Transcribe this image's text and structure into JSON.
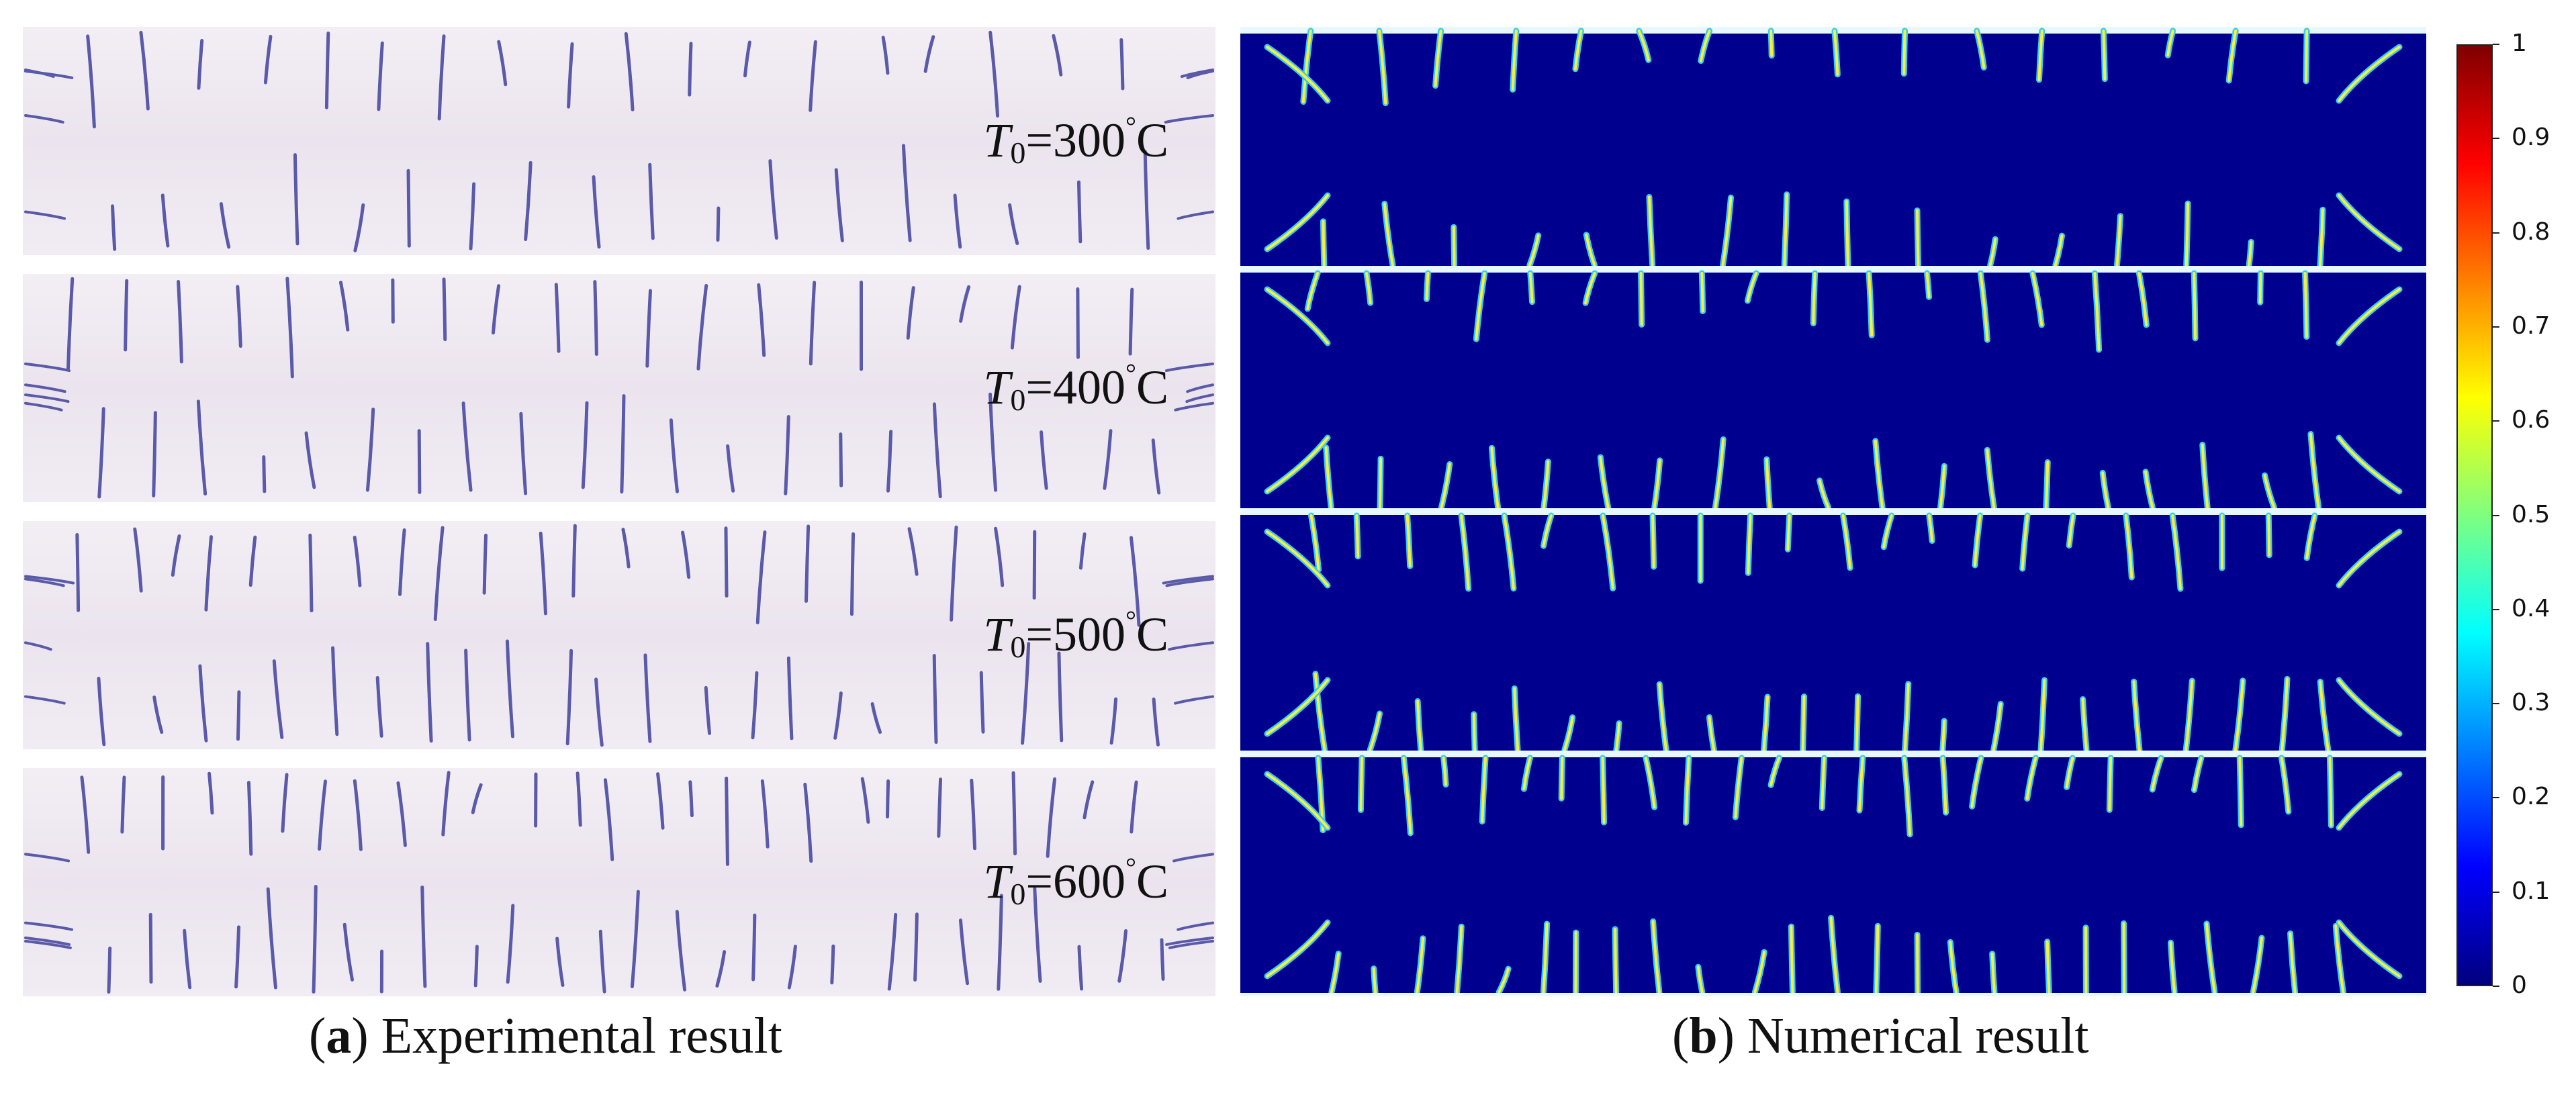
{
  "panel_a": {
    "strips": [
      {
        "T": "T",
        "sub": "0",
        "value": "=300",
        "deg": "°",
        "unit": "C"
      },
      {
        "T": "T",
        "sub": "0",
        "value": "=400",
        "deg": "°",
        "unit": "C"
      },
      {
        "T": "T",
        "sub": "0",
        "value": "=500",
        "deg": "°",
        "unit": "C"
      },
      {
        "T": "T",
        "sub": "0",
        "value": "=600",
        "deg": "°",
        "unit": "C"
      }
    ],
    "caption": {
      "letter": "a",
      "open": "(",
      "close": ")",
      "text": " Experimental result"
    },
    "photo_tone": "#ece5ef",
    "crack_color": "#5a5aa8"
  },
  "panel_b": {
    "background_color": "#00008f",
    "crack_color_core": "#ffee33",
    "crack_color_edge": "#33ccff",
    "caption": {
      "letter": "b",
      "open": "(",
      "close": ")",
      "text": " Numerical result"
    }
  },
  "colorbar": {
    "min": 0,
    "max": 1,
    "ticks": [
      "1",
      "0.9",
      "0.8",
      "0.7",
      "0.6",
      "0.5",
      "0.4",
      "0.3",
      "0.2",
      "0.1",
      "0"
    ],
    "colormap": "jet"
  }
}
